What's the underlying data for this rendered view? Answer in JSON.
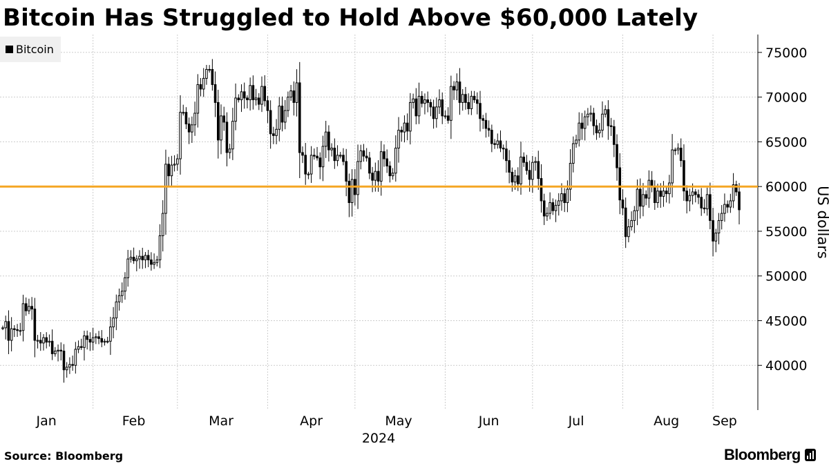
{
  "header": {
    "title": "Bitcoin Has Struggled to Hold Above $60,000 Lately"
  },
  "legend": {
    "label": "Bitcoin"
  },
  "footer": {
    "source": "Source: Bloomberg",
    "brand": "Bloomberg"
  },
  "colors": {
    "candle": "#000000",
    "threshold": "#f5a623",
    "grid": "#cccccc"
  },
  "chart_data": {
    "type": "candlestick",
    "title": "Bitcoin Has Struggled to Hold Above $60,000 Lately",
    "ylabel": "US dollars",
    "xlabel": "",
    "year_label": "2024",
    "ylim": [
      35000,
      77000
    ],
    "yticks": [
      40000,
      45000,
      50000,
      55000,
      60000,
      65000,
      70000,
      75000
    ],
    "x_range": [
      "2024-01-01",
      "2024-09-10"
    ],
    "months": [
      {
        "label": "Jan",
        "center": "2024-01-16",
        "start": "2024-01-01"
      },
      {
        "label": "Feb",
        "center": "2024-02-15",
        "start": "2024-02-01"
      },
      {
        "label": "Mar",
        "center": "2024-03-16",
        "start": "2024-03-01"
      },
      {
        "label": "Apr",
        "center": "2024-04-16",
        "start": "2024-04-01"
      },
      {
        "label": "May",
        "center": "2024-05-16",
        "start": "2024-05-01"
      },
      {
        "label": "Jun",
        "center": "2024-06-16",
        "start": "2024-06-01"
      },
      {
        "label": "Jul",
        "center": "2024-07-16",
        "start": "2024-07-01"
      },
      {
        "label": "Aug",
        "center": "2024-08-16",
        "start": "2024-08-01"
      },
      {
        "label": "Sep",
        "center": "2024-09-05",
        "start": "2024-09-01"
      }
    ],
    "grid": true,
    "legend_position": "top-left",
    "reference_line": {
      "y": 60000
    },
    "series": [
      {
        "name": "Bitcoin",
        "daily_close": [
          44200,
          44900,
          42800,
          44100,
          44000,
          43900,
          43900,
          46900,
          46100,
          46600,
          46300,
          42800,
          42800,
          42500,
          43100,
          42600,
          42700,
          41300,
          41600,
          41700,
          41600,
          39500,
          39800,
          40100,
          40000,
          41800,
          42100,
          42000,
          43300,
          42900,
          42600,
          43100,
          43200,
          43000,
          42600,
          42700,
          42700,
          44300,
          45300,
          47100,
          47800,
          48300,
          49800,
          51900,
          52100,
          51700,
          51900,
          52200,
          51800,
          52300,
          51800,
          51300,
          51500,
          51800,
          54500,
          57000,
          62500,
          61200,
          62400,
          62500,
          63100,
          68300,
          68300,
          67000,
          66100,
          66900,
          68200,
          71400,
          70900,
          72100,
          73100,
          73100,
          71400,
          69400,
          65200,
          67900,
          67200,
          63800,
          64200,
          67300,
          69900,
          69700,
          70600,
          69900,
          69700,
          71300,
          69700,
          69900,
          69200,
          71200,
          69600,
          68500,
          65900,
          65700,
          66400,
          69000,
          67200,
          68500,
          70000,
          70700,
          69400,
          71600,
          63800,
          63500,
          61400,
          61400,
          63500,
          63400,
          63200,
          62200,
          64500,
          66100,
          64100,
          64300,
          62900,
          63500,
          63500,
          62800,
          60600,
          58200,
          60800,
          59100,
          62800,
          64000,
          63400,
          63200,
          61500,
          60700,
          61700,
          60600,
          63900,
          63100,
          62300,
          61200,
          61500,
          64300,
          66300,
          66100,
          67100,
          66200,
          69400,
          69800,
          67900,
          70100,
          69300,
          69700,
          69400,
          68900,
          67600,
          68900,
          69700,
          67900,
          67900,
          67400,
          71200,
          70800,
          71700,
          69400,
          70300,
          69400,
          68700,
          70100,
          69700,
          69300,
          67600,
          67400,
          66500,
          66300,
          64800,
          64700,
          65100,
          64300,
          64200,
          62900,
          61600,
          60500,
          61200,
          60300,
          63300,
          62700,
          61800,
          60800,
          62700,
          62800,
          60900,
          58400,
          56700,
          57000,
          58200,
          57300,
          57900,
          58400,
          59200,
          58200,
          59700,
          62600,
          64800,
          65200,
          67100,
          66500,
          67800,
          68100,
          68200,
          66800,
          66000,
          66300,
          68100,
          68600,
          66800,
          66700,
          64700,
          62100,
          58500,
          57600,
          54400,
          55500,
          56200,
          57300,
          59700,
          57800,
          59100,
          58700,
          60700,
          60000,
          58200,
          59500,
          58900,
          59500,
          59200,
          60400,
          64100,
          64100,
          64300,
          62900,
          59500,
          58400,
          59000,
          59400,
          59100,
          58800,
          57600,
          57500,
          59100,
          56200,
          53900,
          54800,
          56200,
          57000,
          58000,
          57700,
          58400,
          60200,
          59400,
          57400
        ]
      }
    ],
    "annotations": []
  }
}
